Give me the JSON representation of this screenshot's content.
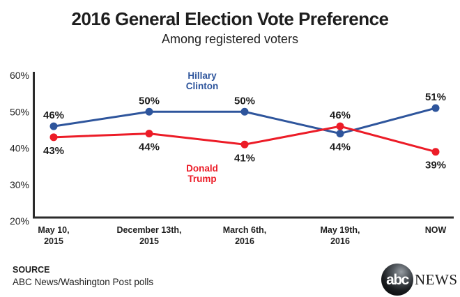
{
  "header": {
    "title": "2016 General Election Vote Preference",
    "subtitle": "Among registered voters"
  },
  "chart_data": {
    "type": "line",
    "title": "2016 General Election Vote Preference",
    "subtitle": "Among registered voters",
    "categories": [
      "May 10, 2015",
      "December 13th, 2015",
      "March 6th, 2016",
      "May 19th, 2016",
      "NOW"
    ],
    "x_tick_lines": [
      [
        "May 10,",
        "2015"
      ],
      [
        "December 13th,",
        "2015"
      ],
      [
        "March 6th,",
        "2016"
      ],
      [
        "May 19th,",
        "2016"
      ],
      [
        "NOW"
      ]
    ],
    "series": [
      {
        "id": "clinton",
        "name": "Hillary Clinton",
        "color": "#2e559c",
        "values": [
          46,
          50,
          50,
          44,
          51
        ]
      },
      {
        "id": "trump",
        "name": "Donald Trump",
        "color": "#ec1c27",
        "values": [
          43,
          44,
          41,
          46,
          39
        ]
      }
    ],
    "value_suffix": "%",
    "y_ticks": [
      {
        "value": 60,
        "label": "60%"
      },
      {
        "value": 50,
        "label": "50%"
      },
      {
        "value": 40,
        "label": "40%"
      },
      {
        "value": 30,
        "label": "30%"
      },
      {
        "value": 20,
        "label": "20%"
      }
    ],
    "ylim": [
      20,
      60
    ],
    "grid": false,
    "legend_position": "inline-annotations",
    "axis_color": "#2b2b2b",
    "label_color": "#1e1e1e"
  },
  "source": {
    "label": "SOURCE",
    "text": "ABC News/Washington Post polls"
  },
  "logo": {
    "abc": "abc",
    "news": "NEWS"
  }
}
